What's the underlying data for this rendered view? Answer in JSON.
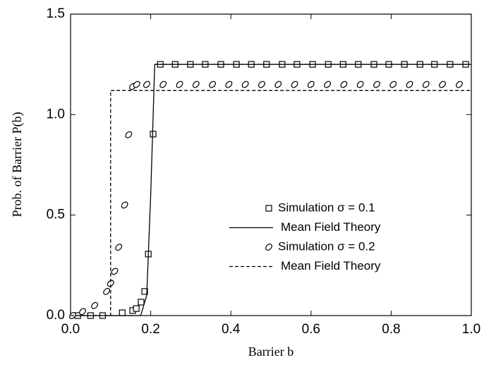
{
  "chart_data": {
    "type": "scatter",
    "xlabel": "Barrier b",
    "ylabel": "Prob. of Barrier P(b)",
    "xlim": [
      0,
      1.0
    ],
    "ylim": [
      0,
      1.5
    ],
    "xticks": [
      {
        "value": 0,
        "label": "0.0"
      },
      {
        "value": 0.2,
        "label": "0.2"
      },
      {
        "value": 0.4,
        "label": "0.4"
      },
      {
        "value": 0.6,
        "label": "0.6"
      },
      {
        "value": 0.8,
        "label": "0.8"
      },
      {
        "value": 1.0,
        "label": "1.0"
      }
    ],
    "yticks": [
      {
        "value": 0,
        "label": "0.0"
      },
      {
        "value": 0.5,
        "label": "0.5"
      },
      {
        "value": 1.0,
        "label": "1.0"
      },
      {
        "value": 1.5,
        "label": "1.5"
      }
    ],
    "series": [
      {
        "name": "Simulation σ = 0.1",
        "color": "#000000",
        "marker": "square",
        "line": "none",
        "x": [
          0.018,
          0.05,
          0.08,
          0.129,
          0.155,
          0.164,
          0.176,
          0.185,
          0.194,
          0.206,
          0.224,
          0.261,
          0.299,
          0.336,
          0.375,
          0.414,
          0.451,
          0.489,
          0.528,
          0.565,
          0.604,
          0.643,
          0.68,
          0.718,
          0.757,
          0.794,
          0.833,
          0.872,
          0.908,
          0.947,
          0.986
        ],
        "values": [
          0,
          0,
          0,
          0.014,
          0.025,
          0.035,
          0.067,
          0.12,
          0.306,
          0.903,
          1.25,
          1.25,
          1.25,
          1.25,
          1.25,
          1.25,
          1.25,
          1.25,
          1.25,
          1.25,
          1.25,
          1.25,
          1.25,
          1.25,
          1.25,
          1.25,
          1.25,
          1.25,
          1.25,
          1.25,
          1.25
        ]
      },
      {
        "name": "Mean Field Theory",
        "color": "#000000",
        "marker": "none",
        "line": "solid",
        "x": [
          0,
          0.175,
          0.19,
          0.2,
          0.21,
          1.0
        ],
        "values": [
          0,
          0,
          0.1,
          0.6,
          1.25,
          1.25
        ]
      },
      {
        "name": "Simulation σ = 0.2",
        "color": "#000000",
        "marker": "diamond",
        "line": "none",
        "x": [
          0.005,
          0.03,
          0.06,
          0.09,
          0.1,
          0.11,
          0.12,
          0.135,
          0.145,
          0.155,
          0.165,
          0.19,
          0.231,
          0.272,
          0.313,
          0.354,
          0.395,
          0.436,
          0.477,
          0.518,
          0.559,
          0.6,
          0.641,
          0.682,
          0.723,
          0.764,
          0.805,
          0.846,
          0.887,
          0.928,
          0.97
        ],
        "values": [
          0,
          0.02,
          0.05,
          0.12,
          0.16,
          0.22,
          0.34,
          0.55,
          0.9,
          1.14,
          1.15,
          1.15,
          1.15,
          1.15,
          1.15,
          1.15,
          1.15,
          1.15,
          1.15,
          1.15,
          1.15,
          1.15,
          1.15,
          1.15,
          1.15,
          1.15,
          1.15,
          1.15,
          1.15,
          1.15,
          1.15
        ]
      },
      {
        "name": "Mean Field Theory",
        "color": "#000000",
        "marker": "none",
        "line": "dashed",
        "x": [
          0,
          0.1,
          0.1,
          1.0
        ],
        "values": [
          0,
          0,
          1.12,
          1.12
        ]
      }
    ]
  }
}
